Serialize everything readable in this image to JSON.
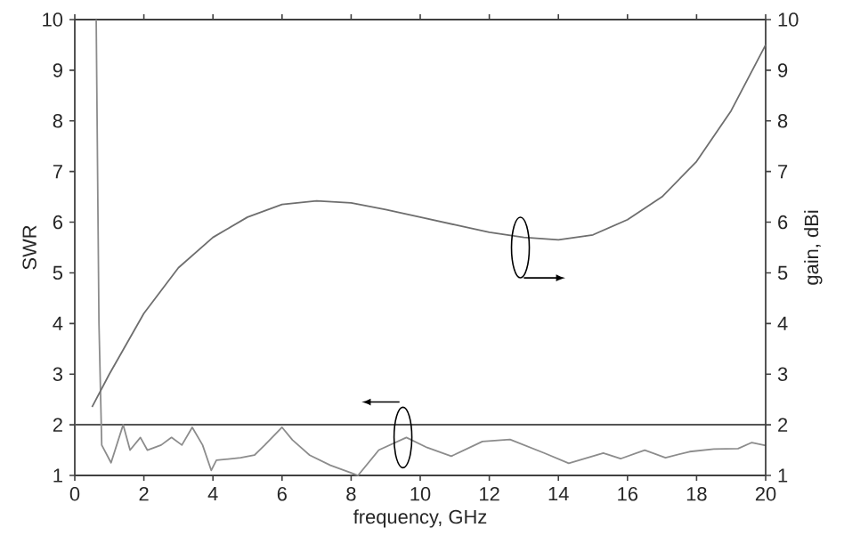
{
  "chart_data": {
    "type": "line",
    "xlabel": "frequency, GHz",
    "ylabel": "SWR",
    "y2label": "gain, dBi",
    "xlim": [
      0,
      20
    ],
    "xticks": [
      0,
      2,
      4,
      6,
      8,
      10,
      12,
      14,
      16,
      18,
      20
    ],
    "ylim": [
      1,
      10
    ],
    "yticks": [
      1,
      2,
      3,
      4,
      5,
      6,
      7,
      8,
      9,
      10
    ],
    "y2lim": [
      1,
      10
    ],
    "y2ticks": [
      1,
      2,
      3,
      4,
      5,
      6,
      7,
      8,
      9,
      10
    ],
    "series": [
      {
        "color": "#8c8c8c",
        "x": [
          0.62,
          0.7,
          0.78,
          1.05,
          1.4,
          1.6,
          1.9,
          2.1,
          2.5,
          2.8,
          3.1,
          3.4,
          3.7,
          3.95,
          4.1,
          4.8,
          5.2,
          5.5,
          6.0,
          6.3,
          6.8,
          7.4,
          8.0,
          8.2,
          8.8,
          9.6,
          10.2,
          10.9,
          11.8,
          12.6,
          13.6,
          14.3,
          15.3,
          15.8,
          16.5,
          17.1,
          17.8,
          18.5,
          19.2,
          19.6,
          20
        ],
        "values": [
          10,
          4,
          1.6,
          1.25,
          2.0,
          1.5,
          1.75,
          1.5,
          1.6,
          1.75,
          1.6,
          1.95,
          1.6,
          1.1,
          1.3,
          1.35,
          1.4,
          1.6,
          1.95,
          1.7,
          1.4,
          1.2,
          1.05,
          1.0,
          1.5,
          1.75,
          1.55,
          1.38,
          1.67,
          1.71,
          1.44,
          1.24,
          1.44,
          1.33,
          1.5,
          1.35,
          1.47,
          1.52,
          1.53,
          1.65,
          1.59
        ]
      },
      {
        "color": "#6e6e6e",
        "axis": "y2",
        "x": [
          0.5,
          1,
          2,
          3,
          4,
          5,
          6,
          7,
          8,
          9,
          10,
          11,
          12,
          13,
          14,
          15,
          16,
          17,
          18,
          19,
          20
        ],
        "values": [
          2.35,
          3.0,
          4.2,
          5.1,
          5.7,
          6.1,
          6.35,
          6.42,
          6.38,
          6.25,
          6.1,
          5.95,
          5.8,
          5.7,
          5.65,
          5.75,
          6.05,
          6.5,
          7.2,
          8.2,
          9.5
        ]
      }
    ],
    "ref_lines": [
      {
        "axis": "y",
        "value": 2,
        "color": "#555555"
      }
    ]
  }
}
